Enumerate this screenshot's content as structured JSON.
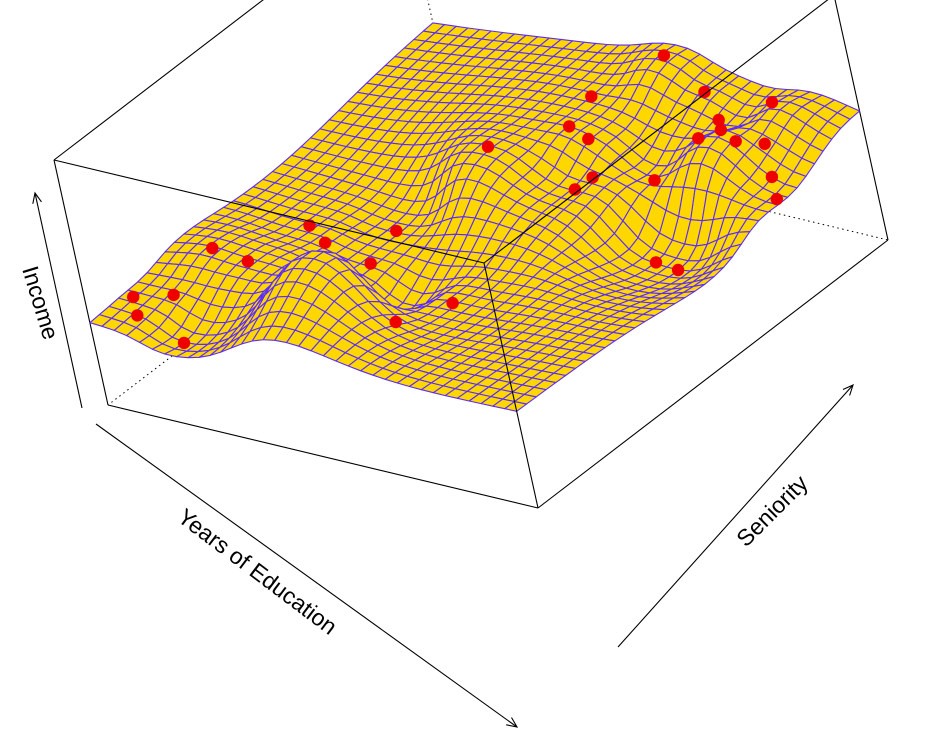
{
  "chart_data": {
    "type": "surface3d",
    "title": "",
    "xlabel": "Years of Education",
    "ylabel": "Seniority",
    "zlabel": "Income",
    "xlim": [
      0,
      1
    ],
    "ylim": [
      0,
      1
    ],
    "zlim": [
      0,
      1
    ],
    "surface_fill_color": "#FFD700",
    "surface_grid_color": "#5B2BFF",
    "point_color": "#EE0000",
    "grid_resolution": [
      36,
      36
    ],
    "observations": [
      {
        "x": 0.04,
        "y": 0.08,
        "z": 0.37
      },
      {
        "x": 0.05,
        "y": 0.07,
        "z": 0.31
      },
      {
        "x": 0.1,
        "y": 0.12,
        "z": 0.36
      },
      {
        "x": 0.15,
        "y": 0.07,
        "z": 0.24
      },
      {
        "x": 0.1,
        "y": 0.24,
        "z": 0.42
      },
      {
        "x": 0.18,
        "y": 0.24,
        "z": 0.4
      },
      {
        "x": 0.18,
        "y": 0.41,
        "z": 0.36
      },
      {
        "x": 0.42,
        "y": 0.2,
        "z": 0.62
      },
      {
        "x": 0.35,
        "y": 0.37,
        "z": 0.32
      },
      {
        "x": 0.32,
        "y": 0.48,
        "z": 0.32
      },
      {
        "x": 0.45,
        "y": 0.3,
        "z": 0.2
      },
      {
        "x": 0.6,
        "y": 0.3,
        "z": 0.34
      },
      {
        "x": 0.44,
        "y": 0.63,
        "z": 0.55
      },
      {
        "x": 0.55,
        "y": 0.73,
        "z": 0.57
      },
      {
        "x": 0.58,
        "y": 0.74,
        "z": 0.52
      },
      {
        "x": 0.6,
        "y": 0.66,
        "z": 0.41
      },
      {
        "x": 0.63,
        "y": 0.68,
        "z": 0.45
      },
      {
        "x": 0.5,
        "y": 0.85,
        "z": 0.54
      },
      {
        "x": 0.7,
        "y": 0.76,
        "z": 0.38
      },
      {
        "x": 0.74,
        "y": 0.85,
        "z": 0.47
      },
      {
        "x": 0.8,
        "y": 0.62,
        "z": 0.24
      },
      {
        "x": 0.85,
        "y": 0.62,
        "z": 0.23
      },
      {
        "x": 0.8,
        "y": 0.88,
        "z": 0.45
      },
      {
        "x": 0.6,
        "y": 0.95,
        "z": 0.64
      },
      {
        "x": 0.71,
        "y": 0.92,
        "z": 0.57
      },
      {
        "x": 0.84,
        "y": 0.81,
        "z": 0.59
      },
      {
        "x": 0.82,
        "y": 0.83,
        "z": 0.6
      },
      {
        "x": 0.91,
        "y": 0.84,
        "z": 0.53
      },
      {
        "x": 0.94,
        "y": 0.81,
        "z": 0.44
      },
      {
        "x": 0.96,
        "y": 0.79,
        "z": 0.38
      },
      {
        "x": 0.88,
        "y": 0.91,
        "z": 0.61
      }
    ],
    "grid": false,
    "legend": "none"
  }
}
